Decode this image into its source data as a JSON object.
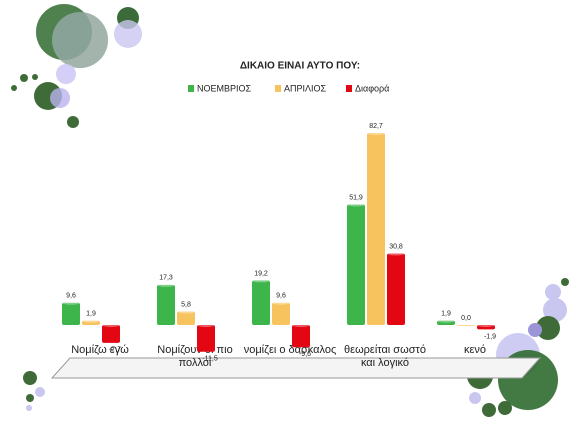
{
  "chart_data": {
    "type": "bar",
    "title": "ΔΙΚΑΙΟ ΕΙΝΑΙ ΑΥΤΟ ΠΟΥ:",
    "categories": [
      "Νομίζω εγώ",
      "Νομίζουν οι πιο πολλοί",
      "νομίζει ο δάσκαλος",
      "θεωρείται σωστό και λογικό",
      "κενό"
    ],
    "series": [
      {
        "name": "ΝΟΕΜΒΡΙΟΣ",
        "color": "#3db54a",
        "values": [
          9.6,
          17.3,
          19.2,
          51.9,
          1.9
        ],
        "value_labels": [
          "9,6",
          "17,3",
          "19,2",
          "51,9",
          "1,9"
        ]
      },
      {
        "name": "ΑΠΡΙΛΙΟΣ",
        "color": "#f7c35f",
        "values": [
          1.9,
          5.8,
          9.6,
          82.7,
          0.0
        ],
        "value_labels": [
          "1,9",
          "5,8",
          "9,6",
          "82,7",
          "0,0"
        ]
      },
      {
        "name": "Διαφορά",
        "color": "#e30613",
        "values": [
          -7.7,
          -11.5,
          -9.6,
          30.8,
          -1.9
        ],
        "value_labels": [
          "-7,7",
          "-11,5",
          "-9,6",
          "30,8",
          "-1,9"
        ]
      }
    ],
    "legend": "top"
  }
}
